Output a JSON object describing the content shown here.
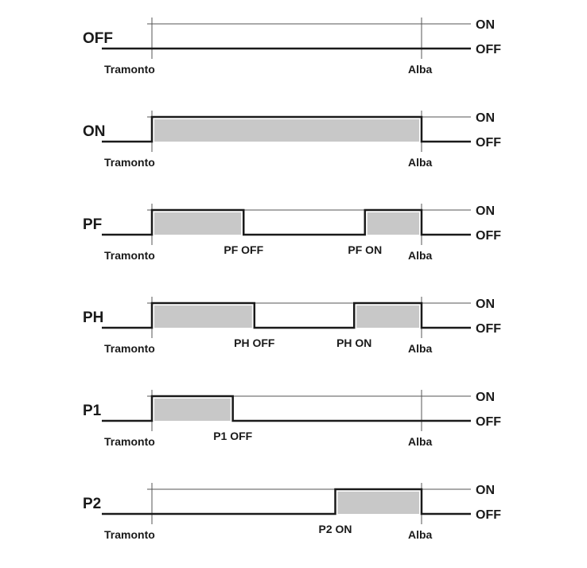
{
  "level_labels": {
    "on": "ON",
    "off": "OFF"
  },
  "axis_labels": {
    "start": "Tramonto",
    "end": "Alba"
  },
  "colors": {
    "line": "#1a1a1a",
    "thin": "#555555",
    "fill": "#c8c8c8"
  },
  "rows": [
    {
      "mode": "OFF",
      "on_segments": [],
      "events": []
    },
    {
      "mode": "ON",
      "on_segments": [
        [
          0,
          1
        ]
      ],
      "events": []
    },
    {
      "mode": "PF",
      "on_segments": [
        [
          0,
          0.34
        ],
        [
          0.79,
          1
        ]
      ],
      "events": [
        {
          "label": "PF OFF",
          "at": 0.34
        },
        {
          "label": "PF ON",
          "at": 0.79
        }
      ]
    },
    {
      "mode": "PH",
      "on_segments": [
        [
          0,
          0.38
        ],
        [
          0.75,
          1
        ]
      ],
      "events": [
        {
          "label": "PH OFF",
          "at": 0.38
        },
        {
          "label": "PH ON",
          "at": 0.75
        }
      ]
    },
    {
      "mode": "P1",
      "on_segments": [
        [
          0,
          0.3
        ]
      ],
      "events": [
        {
          "label": "P1 OFF",
          "at": 0.3
        }
      ]
    },
    {
      "mode": "P2",
      "on_segments": [
        [
          0.68,
          1
        ]
      ],
      "events": [
        {
          "label": "P2 ON",
          "at": 0.68
        }
      ]
    }
  ]
}
